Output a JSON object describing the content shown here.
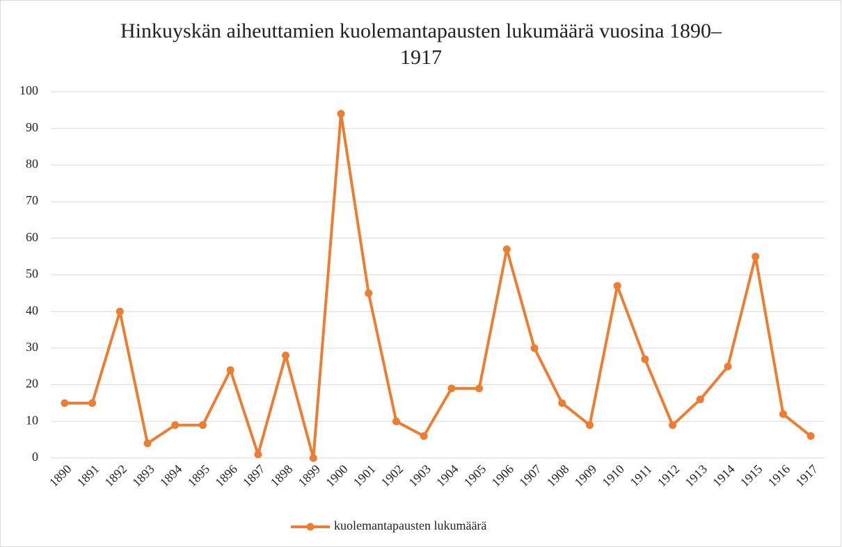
{
  "chart_data": {
    "type": "line",
    "title": "Hinkuyskän aiheuttamien kuolemantapausten lukumäärä vuosina 1890–1917",
    "categories": [
      "1890",
      "1891",
      "1892",
      "1893",
      "1894",
      "1895",
      "1896",
      "1897",
      "1898",
      "1899",
      "1900",
      "1901",
      "1902",
      "1903",
      "1904",
      "1905",
      "1906",
      "1907",
      "1908",
      "1909",
      "1910",
      "1911",
      "1912",
      "1913",
      "1914",
      "1915",
      "1916",
      "1917"
    ],
    "series": [
      {
        "name": "kuolemantapausten lukumäärä",
        "color": "#ed7d31",
        "values": [
          15,
          15,
          40,
          4,
          9,
          9,
          24,
          1,
          28,
          0,
          94,
          45,
          10,
          6,
          19,
          19,
          57,
          30,
          15,
          9,
          47,
          27,
          9,
          16,
          25,
          55,
          12,
          6
        ]
      }
    ],
    "ylim": [
      0,
      100
    ],
    "yticks": [
      0,
      10,
      20,
      30,
      40,
      50,
      60,
      70,
      80,
      90,
      100
    ],
    "grid": true,
    "legend": "bottom"
  }
}
